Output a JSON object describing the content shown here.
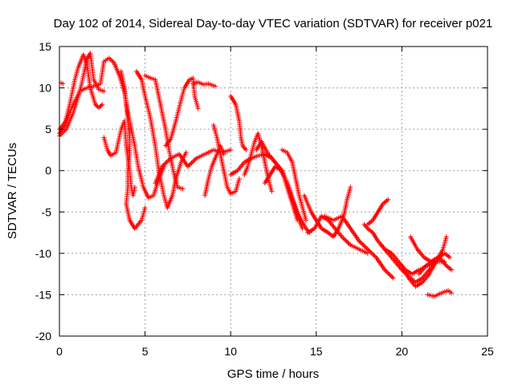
{
  "chart_data": {
    "type": "scatter",
    "title": "Day 102 of 2014, Sidereal Day-to-day VTEC variation (SDTVAR) for receiver p021",
    "xlabel": "GPS time / hours",
    "ylabel": "SDTVAR / TECUs",
    "xlim": [
      0,
      25
    ],
    "ylim": [
      -20,
      15
    ],
    "xticks": [
      0,
      5,
      10,
      15,
      20,
      25
    ],
    "yticks": [
      -20,
      -15,
      -10,
      -5,
      0,
      5,
      10,
      15
    ],
    "grid": true,
    "marker": "+",
    "color": "#ff0000",
    "series": [
      {
        "name": "arc-1",
        "points": [
          [
            0.0,
            4.5
          ],
          [
            0.3,
            5.5
          ],
          [
            0.6,
            8
          ],
          [
            0.9,
            11
          ],
          [
            1.1,
            12.5
          ],
          [
            1.4,
            14
          ],
          [
            1.6,
            13
          ],
          [
            1.8,
            10
          ],
          [
            2.1,
            8
          ],
          [
            2.3,
            7.6
          ],
          [
            2.5,
            8
          ]
        ]
      },
      {
        "name": "arc-2",
        "points": [
          [
            0.1,
            10.6
          ],
          [
            0.2,
            10.5
          ]
        ]
      },
      {
        "name": "arc-3",
        "points": [
          [
            0.0,
            4.2
          ],
          [
            0.4,
            5
          ],
          [
            0.8,
            7
          ],
          [
            1.1,
            9
          ],
          [
            1.3,
            10.5
          ],
          [
            1.6,
            13.5
          ],
          [
            1.8,
            14.2
          ],
          [
            2.0,
            11
          ],
          [
            2.3,
            9.8
          ],
          [
            2.6,
            9.6
          ]
        ]
      },
      {
        "name": "arc-4",
        "points": [
          [
            0.0,
            5.0
          ],
          [
            0.4,
            6
          ],
          [
            0.8,
            8
          ],
          [
            1.2,
            9.6
          ],
          [
            1.6,
            10
          ],
          [
            2.0,
            10.2
          ],
          [
            2.4,
            10.5
          ],
          [
            2.6,
            13.2
          ],
          [
            2.9,
            13.6
          ],
          [
            3.2,
            13
          ],
          [
            3.5,
            11.5
          ],
          [
            3.8,
            9.5
          ],
          [
            4.0,
            7
          ],
          [
            4.2,
            5
          ],
          [
            4.4,
            3
          ],
          [
            4.6,
            0.5
          ],
          [
            4.9,
            -2
          ],
          [
            5.2,
            -3.3
          ],
          [
            5.5,
            -3
          ],
          [
            5.8,
            -1
          ],
          [
            6.1,
            0.5
          ]
        ]
      },
      {
        "name": "arc-5",
        "points": [
          [
            2.6,
            4
          ],
          [
            2.8,
            2.5
          ],
          [
            3.0,
            1.8
          ],
          [
            3.3,
            2.2
          ],
          [
            3.6,
            5
          ],
          [
            3.8,
            6
          ],
          [
            3.9,
            3
          ],
          [
            4.1,
            0
          ],
          [
            4.2,
            -2
          ],
          [
            4.3,
            -3
          ],
          [
            4.4,
            -2
          ]
        ]
      },
      {
        "name": "arc-6",
        "points": [
          [
            3.6,
            12
          ],
          [
            3.8,
            10
          ],
          [
            3.9,
            8
          ],
          [
            4.0,
            6
          ],
          [
            4.1,
            4
          ],
          [
            4.1,
            2
          ],
          [
            4.0,
            0
          ],
          [
            4.0,
            -2
          ],
          [
            3.9,
            -4
          ],
          [
            4.1,
            -6
          ],
          [
            4.4,
            -7
          ],
          [
            4.8,
            -6
          ],
          [
            5.0,
            -4.5
          ]
        ]
      },
      {
        "name": "arc-7",
        "points": [
          [
            4.5,
            12
          ],
          [
            4.8,
            11
          ],
          [
            5.0,
            9
          ],
          [
            5.3,
            6.5
          ],
          [
            5.6,
            3
          ],
          [
            5.8,
            0
          ],
          [
            6.1,
            -3
          ],
          [
            6.3,
            -4.5
          ],
          [
            6.6,
            -3
          ],
          [
            6.8,
            -1
          ],
          [
            7.1,
            1
          ],
          [
            7.4,
            2.2
          ]
        ]
      },
      {
        "name": "arc-8",
        "points": [
          [
            5.0,
            11.5
          ],
          [
            5.3,
            11.2
          ],
          [
            5.6,
            11
          ],
          [
            5.8,
            9
          ],
          [
            6.0,
            7
          ],
          [
            6.2,
            5
          ],
          [
            6.4,
            2.5
          ],
          [
            6.7,
            -0.5
          ],
          [
            6.9,
            -2
          ],
          [
            7.2,
            -2.2
          ]
        ]
      },
      {
        "name": "arc-9",
        "points": [
          [
            6.2,
            3
          ],
          [
            6.5,
            3.8
          ],
          [
            6.8,
            6
          ],
          [
            7.1,
            8.5
          ],
          [
            7.3,
            10
          ],
          [
            7.6,
            11
          ],
          [
            7.8,
            11.2
          ],
          [
            7.9,
            9
          ],
          [
            8.1,
            7.5
          ]
        ]
      },
      {
        "name": "arc-10",
        "points": [
          [
            7.8,
            10.5
          ],
          [
            8.1,
            10.7
          ],
          [
            8.4,
            10.4
          ],
          [
            8.7,
            10.5
          ],
          [
            9.1,
            10.2
          ]
        ]
      },
      {
        "name": "arc-11",
        "points": [
          [
            5.6,
            -1.5
          ],
          [
            6.0,
            0.5
          ],
          [
            6.5,
            1.5
          ],
          [
            7.0,
            2
          ],
          [
            7.5,
            0.5
          ],
          [
            8.0,
            1.5
          ],
          [
            8.5,
            2
          ],
          [
            9.0,
            2.5
          ],
          [
            9.5,
            2.2
          ],
          [
            10.0,
            2.5
          ]
        ]
      },
      {
        "name": "arc-12",
        "points": [
          [
            8.5,
            -3
          ],
          [
            8.7,
            -1
          ],
          [
            8.9,
            0.5
          ],
          [
            9.2,
            2
          ],
          [
            9.4,
            3
          ],
          [
            9.6,
            2
          ]
        ]
      },
      {
        "name": "arc-13",
        "points": [
          [
            9.0,
            5.5
          ],
          [
            9.2,
            4
          ],
          [
            9.4,
            2
          ],
          [
            9.6,
            0
          ],
          [
            9.8,
            -2
          ],
          [
            10.0,
            -2.8
          ],
          [
            10.3,
            -2.5
          ],
          [
            10.5,
            -1
          ]
        ]
      },
      {
        "name": "arc-14",
        "points": [
          [
            10.0,
            9
          ],
          [
            10.3,
            8
          ],
          [
            10.5,
            6
          ],
          [
            10.6,
            4
          ],
          [
            10.7,
            3
          ],
          [
            10.9,
            2.5
          ]
        ]
      },
      {
        "name": "arc-15",
        "points": [
          [
            10.0,
            -0.5
          ],
          [
            10.4,
            0
          ],
          [
            10.8,
            1
          ],
          [
            11.2,
            1.5
          ],
          [
            11.6,
            1.8
          ],
          [
            12.0,
            2
          ],
          [
            12.4,
            1.5
          ],
          [
            12.8,
            0.5
          ],
          [
            13.2,
            -1
          ],
          [
            13.6,
            -3.5
          ],
          [
            14.0,
            -5.5
          ],
          [
            14.4,
            -7
          ],
          [
            14.6,
            -7.5
          ]
        ]
      },
      {
        "name": "arc-16",
        "points": [
          [
            10.8,
            -0.5
          ],
          [
            11.0,
            0.5
          ],
          [
            11.2,
            2
          ],
          [
            11.4,
            3.5
          ],
          [
            11.6,
            4.5
          ],
          [
            11.8,
            3
          ],
          [
            12.0,
            1
          ],
          [
            12.2,
            -1
          ],
          [
            12.4,
            -2.5
          ]
        ]
      },
      {
        "name": "arc-17",
        "points": [
          [
            11.5,
            2.5
          ],
          [
            11.8,
            3.5
          ],
          [
            12.2,
            2
          ],
          [
            12.6,
            1
          ],
          [
            13.0,
            0
          ],
          [
            13.4,
            -2
          ],
          [
            13.7,
            -4
          ],
          [
            14.0,
            -6
          ],
          [
            14.2,
            -7
          ]
        ]
      },
      {
        "name": "arc-18",
        "points": [
          [
            12.0,
            -1.5
          ],
          [
            12.3,
            -0.5
          ],
          [
            12.6,
            0.5
          ],
          [
            13.0,
            0
          ],
          [
            13.3,
            -2
          ],
          [
            13.6,
            -4
          ],
          [
            13.9,
            -6
          ]
        ]
      },
      {
        "name": "arc-19",
        "points": [
          [
            13.0,
            2.5
          ],
          [
            13.3,
            2.2
          ],
          [
            13.6,
            1
          ],
          [
            13.8,
            -1
          ],
          [
            14.0,
            -3
          ],
          [
            14.2,
            -4.5
          ],
          [
            14.4,
            -6
          ]
        ]
      },
      {
        "name": "arc-20",
        "points": [
          [
            14.3,
            -3
          ],
          [
            14.7,
            -5
          ],
          [
            15.0,
            -6
          ],
          [
            15.3,
            -7
          ],
          [
            15.7,
            -7.5
          ],
          [
            16.0,
            -8
          ],
          [
            16.3,
            -7
          ],
          [
            16.6,
            -5.5
          ],
          [
            16.8,
            -3.5
          ],
          [
            17.0,
            -2
          ]
        ]
      },
      {
        "name": "arc-21",
        "points": [
          [
            14.5,
            -7.5
          ],
          [
            14.9,
            -7
          ],
          [
            15.3,
            -5.5
          ],
          [
            15.7,
            -6
          ],
          [
            16.1,
            -7
          ],
          [
            16.5,
            -8
          ],
          [
            17.0,
            -9
          ],
          [
            17.5,
            -9.5
          ],
          [
            18.0,
            -10
          ]
        ]
      },
      {
        "name": "arc-22",
        "points": [
          [
            15.5,
            -5.5
          ],
          [
            16.0,
            -6
          ],
          [
            16.5,
            -5.5
          ],
          [
            17.0,
            -7
          ],
          [
            17.5,
            -8.5
          ],
          [
            18.0,
            -9.5
          ],
          [
            18.5,
            -10.5
          ],
          [
            19.0,
            -12
          ],
          [
            19.5,
            -13
          ]
        ]
      },
      {
        "name": "arc-23",
        "points": [
          [
            17.8,
            -6.5
          ],
          [
            18.0,
            -7
          ],
          [
            18.3,
            -7.5
          ],
          [
            18.6,
            -8.5
          ],
          [
            19.0,
            -9.5
          ],
          [
            19.4,
            -10
          ],
          [
            19.8,
            -11
          ],
          [
            20.2,
            -12
          ],
          [
            20.6,
            -12.5
          ],
          [
            21.0,
            -12
          ],
          [
            21.5,
            -11.5
          ],
          [
            22.0,
            -11
          ],
          [
            22.5,
            -11
          ]
        ]
      },
      {
        "name": "arc-24",
        "points": [
          [
            18.0,
            -6.5
          ],
          [
            18.3,
            -6
          ],
          [
            18.6,
            -5
          ],
          [
            18.9,
            -4
          ],
          [
            19.2,
            -3.5
          ]
        ]
      },
      {
        "name": "arc-25",
        "points": [
          [
            18.8,
            -9
          ],
          [
            19.2,
            -10
          ],
          [
            19.6,
            -11
          ],
          [
            20.0,
            -12
          ],
          [
            20.4,
            -12.8
          ],
          [
            20.8,
            -13.5
          ],
          [
            21.2,
            -13
          ],
          [
            21.6,
            -12
          ],
          [
            22.0,
            -11
          ],
          [
            22.3,
            -10.2
          ]
        ]
      },
      {
        "name": "arc-26",
        "points": [
          [
            20.0,
            -11.5
          ],
          [
            20.4,
            -13
          ],
          [
            20.8,
            -14
          ],
          [
            21.2,
            -13.5
          ],
          [
            21.6,
            -12.5
          ],
          [
            22.0,
            -11
          ],
          [
            22.4,
            -9.5
          ],
          [
            22.6,
            -8
          ]
        ]
      },
      {
        "name": "arc-27",
        "points": [
          [
            20.5,
            -8
          ],
          [
            20.9,
            -9.5
          ],
          [
            21.3,
            -10.5
          ],
          [
            21.7,
            -11
          ],
          [
            22.1,
            -10.5
          ],
          [
            22.5,
            -10
          ],
          [
            22.8,
            -10.5
          ]
        ]
      },
      {
        "name": "arc-28",
        "points": [
          [
            21.0,
            -12.5
          ],
          [
            21.4,
            -11.5
          ],
          [
            21.8,
            -11
          ],
          [
            22.2,
            -10.5
          ],
          [
            22.6,
            -11.5
          ],
          [
            22.9,
            -12
          ]
        ]
      },
      {
        "name": "arc-29",
        "points": [
          [
            21.5,
            -15
          ],
          [
            21.9,
            -15.2
          ],
          [
            22.3,
            -14.8
          ],
          [
            22.7,
            -14.5
          ],
          [
            22.9,
            -14.8
          ]
        ]
      }
    ]
  }
}
